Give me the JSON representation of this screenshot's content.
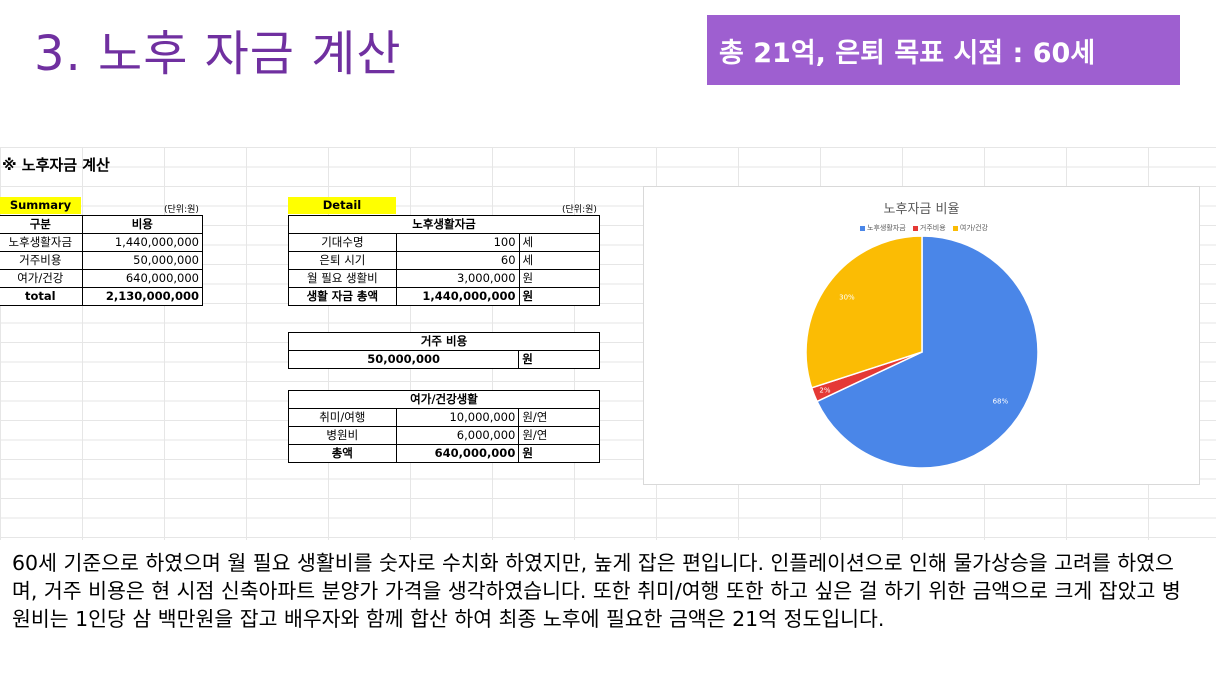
{
  "slide": {
    "title": "3. 노후 자금 계산",
    "banner": "총 21억, 은퇴 목표 시점  : 60세",
    "description": "60세 기준으로 하였으며 월 필요 생활비를 숫자로 수치화 하였지만, 높게 잡은 편입니다. 인플레이션으로 인해 물가상승을 고려를 하였으며, 거주 비용은 현 시점 신축아파트 분양가 가격을 생각하였습니다. 또한 취미/여행 또한 하고 싶은 걸 하기 위한 금액으로 크게 잡았고 병원비는 1인당 삼 백만원을 잡고 배우자와 함께 합산 하여 최종 노후에 필요한 금액은 21억 정도입니다."
  },
  "sheet": {
    "heading": "※ 노후자금 계산",
    "summary": {
      "label": "Summary",
      "unit": "(단위:원)",
      "header": [
        "구분",
        "비용"
      ],
      "rows": [
        [
          "노후생활자금",
          "1,440,000,000"
        ],
        [
          "거주비용",
          "50,000,000"
        ],
        [
          "여가/건강",
          "640,000,000"
        ]
      ],
      "total": [
        "total",
        "2,130,000,000"
      ]
    },
    "detail": {
      "label": "Detail",
      "unit": "(단위:원)",
      "living": {
        "title": "노후생활자금",
        "rows": [
          [
            "기대수명",
            "100",
            "세"
          ],
          [
            "은퇴 시기",
            "60",
            "세"
          ],
          [
            "월 필요 생활비",
            "3,000,000",
            "원"
          ]
        ],
        "total": [
          "생활 자금 총액",
          "1,440,000,000",
          "원"
        ]
      },
      "housing": {
        "title": "거주 비용",
        "amount": "50,000,000",
        "unit": "원"
      },
      "leisure": {
        "title": "여가/건강생활",
        "rows": [
          [
            "취미/여행",
            "10,000,000",
            "원/연"
          ],
          [
            "병원비",
            "6,000,000",
            "원/연"
          ]
        ],
        "total": [
          "총액",
          "640,000,000",
          "원"
        ]
      }
    }
  },
  "chart_data": {
    "type": "pie",
    "title": "노후자금 비율",
    "categories": [
      "노후생활자금",
      "거주비용",
      "여가/건강"
    ],
    "values": [
      68,
      2,
      30
    ],
    "labels": [
      "68%",
      "2%",
      "30%"
    ],
    "colors": [
      "#4a86e8",
      "#e53935",
      "#fbbc04"
    ],
    "legend_position": "top"
  }
}
